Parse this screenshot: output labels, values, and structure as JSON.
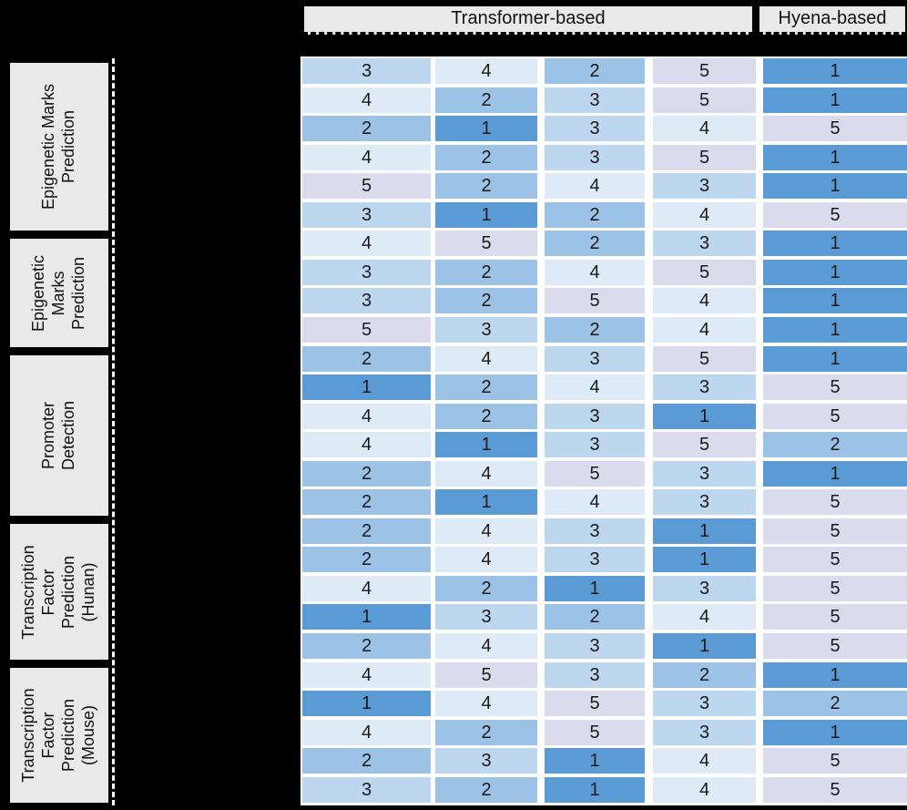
{
  "figure": {
    "headers": {
      "transformer": "Transformer-based",
      "hyena": "Hyena-based"
    },
    "row_group_labels": [
      {
        "label": "Epigenetic Marks Prediction",
        "lines": [
          "Epigenetic Marks",
          "Prediction"
        ]
      },
      {
        "label": "Epigenetic Marks Prediction",
        "lines": [
          "Epigenetic",
          "Marks",
          "Prediction"
        ]
      },
      {
        "label": "Promoter Detection",
        "lines": [
          "Promoter",
          "Detection"
        ]
      },
      {
        "label": "Transcription Factor Prediction (Hunan)",
        "lines": [
          "Transcription",
          "Factor",
          "Prediction",
          "(Hunan)"
        ]
      },
      {
        "label": "Transcription Factor Prediction (Mouse)",
        "lines": [
          "Transcription",
          "Factor",
          "Prediction",
          "(Mouse)"
        ]
      }
    ]
  },
  "chart_data": {
    "type": "heatmap",
    "title": "",
    "column_groups": [
      {
        "label": "Transformer-based",
        "num_columns": 4
      },
      {
        "label": "Hyena-based",
        "num_columns": 1
      }
    ],
    "row_groups": [
      {
        "label": "Epigenetic Marks Prediction",
        "num_rows": 6
      },
      {
        "label": "Epigenetic Marks Prediction",
        "num_rows": 4
      },
      {
        "label": "Promoter Detection",
        "num_rows": 6
      },
      {
        "label": "Transcription Factor Prediction (Hunan)",
        "num_rows": 5
      },
      {
        "label": "Transcription Factor Prediction (Mouse)",
        "num_rows": 5
      }
    ],
    "values": [
      [
        3,
        4,
        2,
        5,
        1
      ],
      [
        4,
        2,
        3,
        5,
        1
      ],
      [
        2,
        1,
        3,
        4,
        5
      ],
      [
        4,
        2,
        3,
        5,
        1
      ],
      [
        5,
        2,
        4,
        3,
        1
      ],
      [
        3,
        1,
        2,
        4,
        5
      ],
      [
        4,
        5,
        2,
        3,
        1
      ],
      [
        3,
        2,
        4,
        5,
        1
      ],
      [
        3,
        2,
        5,
        4,
        1
      ],
      [
        5,
        3,
        2,
        4,
        1
      ],
      [
        2,
        4,
        3,
        5,
        1
      ],
      [
        1,
        2,
        4,
        3,
        5
      ],
      [
        4,
        2,
        3,
        1,
        5
      ],
      [
        4,
        1,
        3,
        5,
        2
      ],
      [
        2,
        4,
        5,
        3,
        1
      ],
      [
        2,
        1,
        4,
        3,
        5
      ],
      [
        2,
        4,
        3,
        1,
        5
      ],
      [
        2,
        4,
        3,
        1,
        5
      ],
      [
        4,
        2,
        1,
        3,
        5
      ],
      [
        1,
        3,
        2,
        4,
        5
      ],
      [
        2,
        4,
        3,
        1,
        5
      ],
      [
        4,
        5,
        3,
        2,
        1
      ],
      [
        1,
        4,
        5,
        3,
        2
      ],
      [
        4,
        2,
        5,
        3,
        1
      ],
      [
        2,
        3,
        1,
        4,
        5
      ],
      [
        3,
        2,
        1,
        4,
        5
      ]
    ],
    "rank_colors": {
      "1": "#5b9bd5",
      "2": "#9cc2e5",
      "3": "#bdd7ee",
      "4": "#deebf7",
      "5": "#dadcee"
    }
  }
}
